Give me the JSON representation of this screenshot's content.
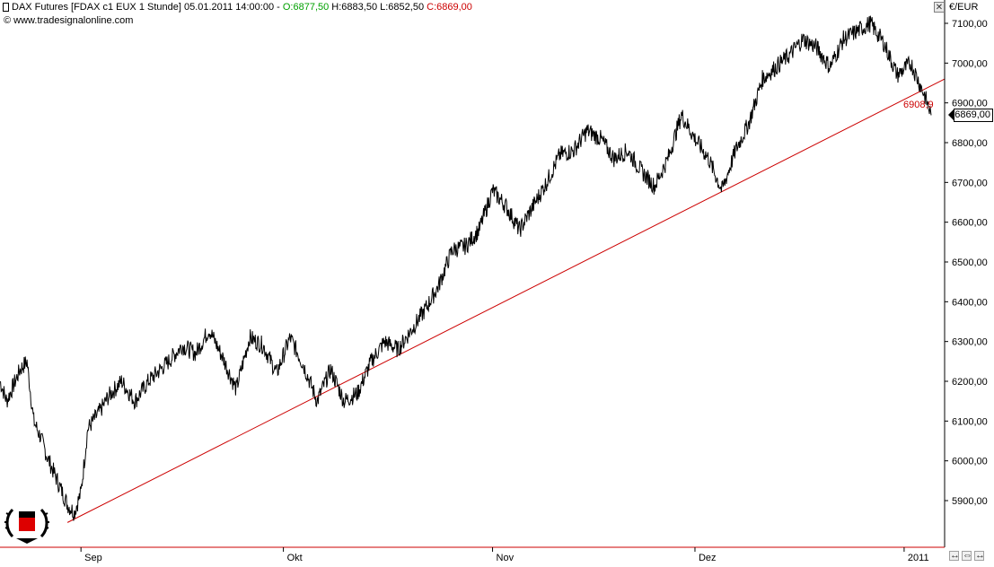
{
  "header": {
    "instrument": "DAX Futures [FDAX c1 EUX  1 Stunde] 05.01.2011 14:00:00 - ",
    "open": "O:6877,50",
    "high": "H:6883,50",
    "low": "L:6852,50",
    "close": "C:6869,00",
    "watermark": "© www.tradesignalonline.com"
  },
  "unit_label": "€/EUR",
  "close_icon": "close-icon",
  "current_price_label": "6869,00",
  "trendline_label": "6908,9",
  "nav_icons": [
    "scroll-left-icon",
    "zoom-icon",
    "scroll-right-icon"
  ],
  "colors": {
    "price": "#000000",
    "trendline": "#cc0000",
    "open": "#00a000",
    "close": "#cc0000"
  },
  "chart_data": {
    "type": "line",
    "title": "DAX Futures [FDAX c1 EUX  1 Stunde]",
    "y_axis_side": "right",
    "ylim": [
      5820,
      7130
    ],
    "y_ticks": [
      5900,
      6000,
      6100,
      6200,
      6300,
      6400,
      6500,
      6600,
      6700,
      6800,
      6900,
      7000,
      7100
    ],
    "y_tick_labels": [
      "5900,00",
      "6000,00",
      "6100,00",
      "6200,00",
      "6300,00",
      "6400,00",
      "6500,00",
      "6600,00",
      "6700,00",
      "6800,00",
      "6900,00",
      "7000,00",
      "7100,00"
    ],
    "x_domain": [
      "2010-08-20",
      "2011-01-07"
    ],
    "x_ticks": [
      "2010-09-01",
      "2010-10-01",
      "2010-11-01",
      "2010-12-01",
      "2011-01-01"
    ],
    "x_tick_labels": [
      "Sep",
      "Okt",
      "Nov",
      "Dez",
      "2011"
    ],
    "series": [
      {
        "type": "line",
        "x": [
          "2010-08-20",
          "2010-08-21",
          "2010-08-23",
          "2010-08-24",
          "2010-08-25",
          "2010-08-26",
          "2010-08-27",
          "2010-08-28",
          "2010-08-30",
          "2010-08-31",
          "2010-09-01",
          "2010-09-02",
          "2010-09-04",
          "2010-09-05",
          "2010-09-07",
          "2010-09-09",
          "2010-09-11",
          "2010-09-14",
          "2010-09-16",
          "2010-09-18",
          "2010-09-20",
          "2010-09-22",
          "2010-09-24",
          "2010-09-26",
          "2010-09-28",
          "2010-09-30",
          "2010-10-02",
          "2010-10-04",
          "2010-10-06",
          "2010-10-08",
          "2010-10-10",
          "2010-10-12",
          "2010-10-14",
          "2010-10-16",
          "2010-10-18",
          "2010-10-20",
          "2010-10-22",
          "2010-10-24",
          "2010-10-26",
          "2010-10-28",
          "2010-10-30",
          "2010-11-01",
          "2010-11-03",
          "2010-11-05",
          "2010-11-07",
          "2010-11-09",
          "2010-11-11",
          "2010-11-13",
          "2010-11-15",
          "2010-11-17",
          "2010-11-19",
          "2010-11-21",
          "2010-11-23",
          "2010-11-25",
          "2010-11-27",
          "2010-11-29",
          "2010-12-01",
          "2010-12-03",
          "2010-12-05",
          "2010-12-07",
          "2010-12-09",
          "2010-12-11",
          "2010-12-13",
          "2010-12-15",
          "2010-12-17",
          "2010-12-19",
          "2010-12-21",
          "2010-12-23",
          "2010-12-25",
          "2010-12-27",
          "2010-12-29",
          "2010-12-31",
          "2011-01-02",
          "2011-01-04",
          "2011-01-05"
        ],
        "y": [
          6200,
          6150,
          6230,
          6250,
          6100,
          6060,
          6010,
          5970,
          5890,
          5870,
          5920,
          6080,
          6130,
          6160,
          6200,
          6150,
          6200,
          6250,
          6290,
          6270,
          6330,
          6260,
          6180,
          6310,
          6290,
          6220,
          6310,
          6240,
          6150,
          6230,
          6150,
          6170,
          6250,
          6300,
          6280,
          6330,
          6380,
          6440,
          6530,
          6540,
          6580,
          6680,
          6640,
          6580,
          6640,
          6700,
          6770,
          6780,
          6830,
          6810,
          6760,
          6780,
          6730,
          6690,
          6760,
          6870,
          6810,
          6760,
          6680,
          6780,
          6850,
          6960,
          6990,
          7020,
          7060,
          7040,
          6990,
          7060,
          7080,
          7100,
          7050,
          6970,
          7000,
          6920,
          6869
        ]
      }
    ],
    "trendline": {
      "from": {
        "x": "2010-08-30",
        "y": 5845
      },
      "to": {
        "x": "2011-01-07",
        "y": 6960
      },
      "label": "6908,9"
    },
    "grid": false,
    "legend": "none"
  }
}
